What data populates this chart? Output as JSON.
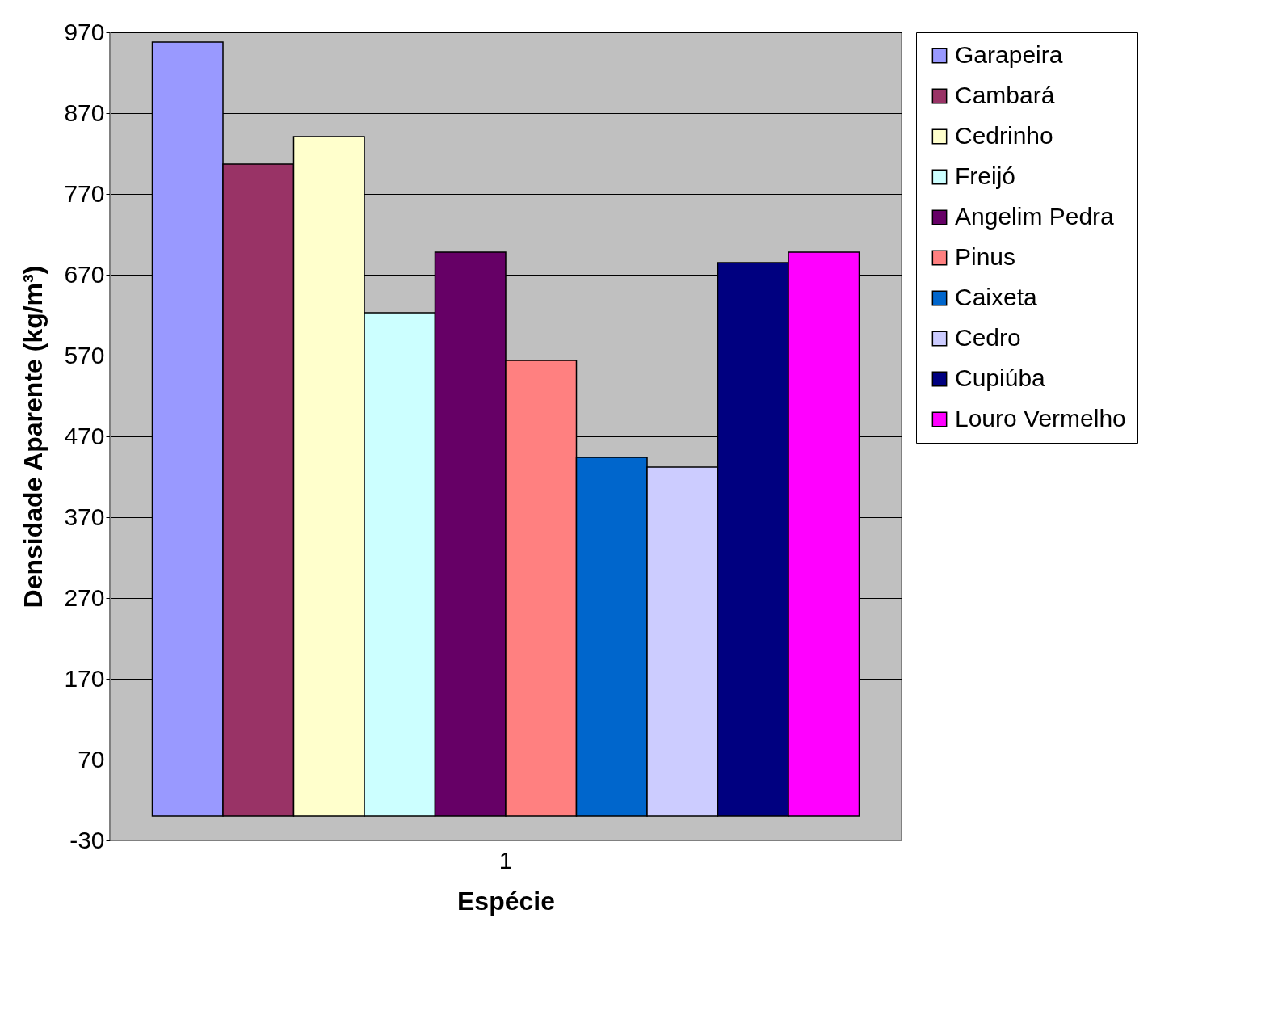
{
  "chart_data": {
    "type": "bar",
    "xlabel": "Espécie",
    "ylabel": "Densidade Aparente (kg/m³)",
    "categories": [
      "1"
    ],
    "series": [
      {
        "name": "Garapeira",
        "color": "#9999ff",
        "values": [
          958
        ]
      },
      {
        "name": "Cambará",
        "color": "#993366",
        "values": [
          807
        ]
      },
      {
        "name": "Cedrinho",
        "color": "#ffffcc",
        "values": [
          841
        ]
      },
      {
        "name": "Freijó",
        "color": "#ccffff",
        "values": [
          623
        ]
      },
      {
        "name": "Angelim Pedra",
        "color": "#660066",
        "values": [
          698
        ]
      },
      {
        "name": "Pinus",
        "color": "#ff8080",
        "values": [
          564
        ]
      },
      {
        "name": "Caixeta",
        "color": "#0066cc",
        "values": [
          444
        ]
      },
      {
        "name": "Cedro",
        "color": "#ccccff",
        "values": [
          432
        ]
      },
      {
        "name": "Cupiúba",
        "color": "#000080",
        "values": [
          685
        ]
      },
      {
        "name": "Louro Vermelho",
        "color": "#ff00ff",
        "values": [
          698
        ]
      }
    ],
    "ylim": [
      -30,
      970
    ],
    "yticks": [
      -30,
      70,
      170,
      270,
      370,
      470,
      570,
      670,
      770,
      870,
      970
    ],
    "grid": "y",
    "legend": "right"
  }
}
